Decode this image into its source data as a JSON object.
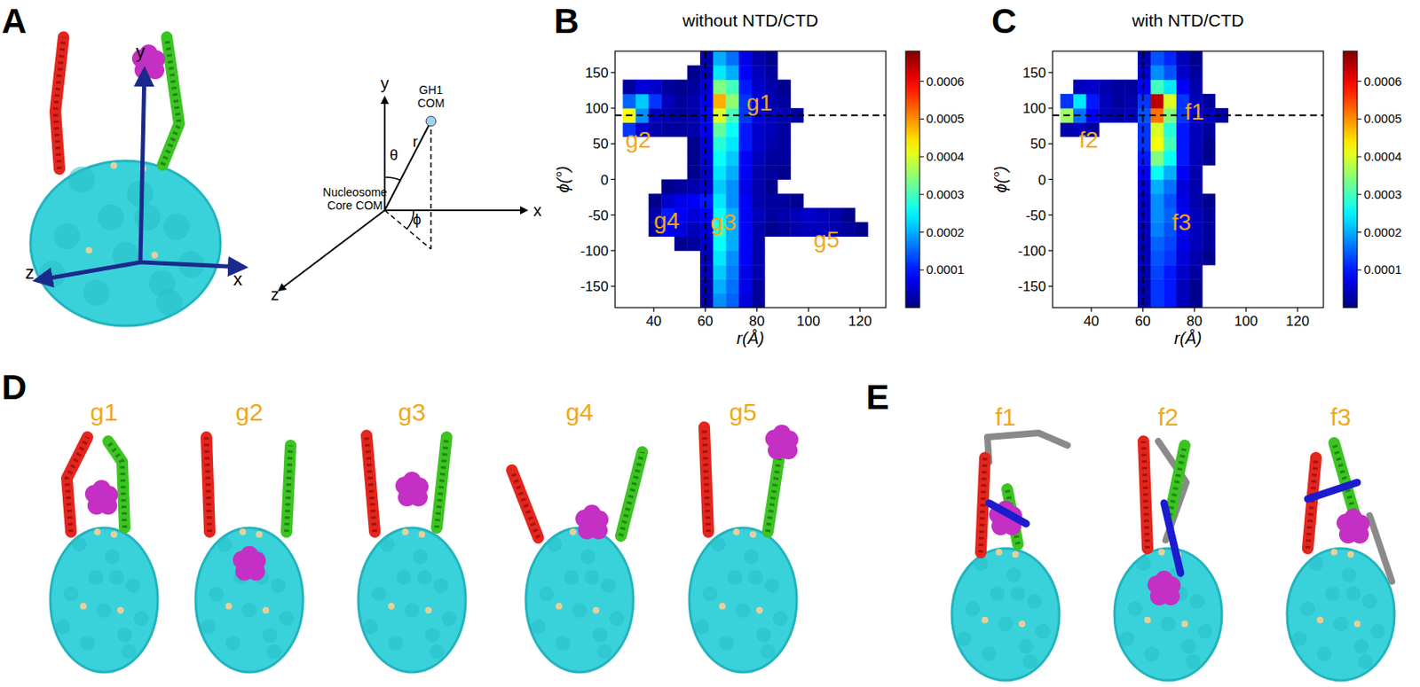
{
  "panel_a": {
    "letter": "A",
    "molecule_axes": [
      "y",
      "x",
      "z"
    ],
    "diagram": {
      "axes": [
        "y",
        "x",
        "z"
      ],
      "point_label": "GH1 COM",
      "origin_label": "Nucleosome Core COM",
      "theta": "θ",
      "r": "r",
      "phi": "ϕ"
    }
  },
  "chart_data": [
    {
      "type": "heatmap",
      "letter": "B",
      "title": "without NTD/CTD",
      "x_label": "r(Å)",
      "y_label": "ϕ(°)",
      "xlim": [
        25,
        130
      ],
      "ylim": [
        -180,
        180
      ],
      "xticks": [
        40,
        60,
        80,
        100,
        120
      ],
      "yticks": [
        -150,
        -100,
        -50,
        0,
        50,
        100,
        150
      ],
      "x_bins": [
        28,
        33,
        38,
        43,
        48,
        53,
        58,
        63,
        68,
        73,
        78,
        83,
        88,
        93,
        98,
        103,
        108,
        113,
        118,
        123,
        128
      ],
      "y_bins": [
        -180,
        -160,
        -140,
        -120,
        -100,
        -80,
        -60,
        -40,
        -20,
        0,
        20,
        40,
        60,
        80,
        100,
        120,
        140,
        160,
        180
      ],
      "cells": [
        [
          0,
          0,
          0,
          0,
          0,
          0,
          3e-05,
          0.00018,
          0.00015,
          6e-05,
          2e-05,
          0,
          0,
          0,
          0,
          0,
          0,
          0,
          0,
          0
        ],
        [
          0,
          0,
          0,
          0,
          0,
          0,
          3e-05,
          0.0002,
          0.00016,
          7e-05,
          2e-05,
          0,
          0,
          0,
          0,
          0,
          0,
          0,
          0,
          0
        ],
        [
          0,
          0,
          0,
          0,
          0,
          0,
          4e-05,
          0.00022,
          0.00017,
          7e-05,
          3e-05,
          0,
          0,
          0,
          0,
          0,
          0,
          0,
          0,
          0
        ],
        [
          0,
          0,
          0,
          0,
          0,
          0,
          4e-05,
          0.00024,
          0.00018,
          8e-05,
          3e-05,
          0,
          0,
          0,
          0,
          0,
          0,
          0,
          0,
          0
        ],
        [
          0,
          0,
          0,
          0,
          1e-05,
          2e-05,
          5e-05,
          0.00026,
          0.0002,
          8e-05,
          3e-05,
          0,
          0,
          0,
          0,
          0,
          0,
          0,
          0,
          0
        ],
        [
          0,
          0,
          2e-05,
          8e-05,
          6e-05,
          4e-05,
          6e-05,
          0.00028,
          0.0002,
          8e-05,
          3e-05,
          1e-05,
          2e-05,
          3e-05,
          4e-05,
          4e-05,
          3e-05,
          2e-05,
          1e-05,
          0
        ],
        [
          0,
          0,
          3e-05,
          0.0001,
          8e-05,
          6e-05,
          8e-05,
          0.00026,
          0.0002,
          8e-05,
          4e-05,
          2e-05,
          3e-05,
          4e-05,
          5e-05,
          4e-05,
          3e-05,
          1e-05,
          0,
          0
        ],
        [
          0,
          0,
          1e-05,
          5e-05,
          7e-05,
          8e-05,
          0.0001,
          0.00024,
          0.00018,
          8e-05,
          3e-05,
          2e-05,
          2e-05,
          1e-05,
          0,
          0,
          0,
          0,
          0,
          0
        ],
        [
          0,
          0,
          0,
          1e-05,
          2e-05,
          3e-05,
          5e-05,
          0.00022,
          0.00018,
          7e-05,
          3e-05,
          1e-05,
          0,
          0,
          0,
          0,
          0,
          0,
          0,
          0
        ],
        [
          0,
          0,
          0,
          0,
          0,
          1e-05,
          5e-05,
          0.00024,
          0.0002,
          8e-05,
          3e-05,
          2e-05,
          1e-05,
          0,
          0,
          0,
          0,
          0,
          0,
          0
        ],
        [
          0,
          0,
          0,
          0,
          0,
          1e-05,
          6e-05,
          0.00026,
          0.00022,
          8e-05,
          4e-05,
          2e-05,
          2e-05,
          0,
          0,
          0,
          0,
          0,
          0,
          0
        ],
        [
          0,
          0,
          0,
          0,
          0,
          1e-05,
          6e-05,
          0.00028,
          0.00024,
          0.0001,
          5e-05,
          3e-05,
          2e-05,
          0,
          0,
          0,
          0,
          0,
          0,
          0
        ],
        [
          0.00012,
          5e-05,
          3e-05,
          2e-05,
          2e-05,
          3e-05,
          8e-05,
          0.00032,
          0.00026,
          0.0001,
          5e-05,
          4e-05,
          2e-05,
          0,
          0,
          0,
          0,
          0,
          0,
          0
        ],
        [
          0.00042,
          0.00018,
          4e-05,
          3e-05,
          2e-05,
          3e-05,
          9e-05,
          0.0004,
          0.0003,
          0.00012,
          6e-05,
          4e-05,
          3e-05,
          2e-05,
          0,
          0,
          0,
          0,
          0,
          0
        ],
        [
          0.00015,
          0.00022,
          0.00012,
          4e-05,
          2e-05,
          3e-05,
          8e-05,
          0.00048,
          0.00035,
          0.00012,
          6e-05,
          3e-05,
          2e-05,
          0,
          0,
          0,
          0,
          0,
          0,
          0
        ],
        [
          2e-05,
          6e-05,
          5e-05,
          2e-05,
          1e-05,
          2e-05,
          6e-05,
          0.00034,
          0.0003,
          0.0001,
          5e-05,
          3e-05,
          1e-05,
          0,
          0,
          0,
          0,
          0,
          0,
          0
        ],
        [
          0,
          0,
          0,
          0,
          0,
          1e-05,
          4e-05,
          0.00024,
          0.0002,
          8e-05,
          4e-05,
          2e-05,
          0,
          0,
          0,
          0,
          0,
          0,
          0,
          0
        ],
        [
          0,
          0,
          0,
          0,
          0,
          0,
          3e-05,
          0.0002,
          0.00016,
          7e-05,
          3e-05,
          1e-05,
          0,
          0,
          0,
          0,
          0,
          0,
          0,
          0
        ]
      ],
      "colorbar_range": [
        0,
        0.00068
      ],
      "colorbar_ticks": [
        0.0001,
        0.0002,
        0.0003,
        0.0004,
        0.0005,
        0.0006
      ],
      "reference_lines": {
        "x": 60,
        "y": 90
      },
      "annotations": [
        {
          "text": "g1",
          "x": 81,
          "y": 108
        },
        {
          "text": "g2",
          "x": 34,
          "y": 56
        },
        {
          "text": "g3",
          "x": 67,
          "y": -60
        },
        {
          "text": "g4",
          "x": 45,
          "y": -57
        },
        {
          "text": "g5",
          "x": 107,
          "y": -84
        }
      ]
    },
    {
      "type": "heatmap",
      "letter": "C",
      "title": "with NTD/CTD",
      "x_label": "r(Å)",
      "y_label": "ϕ(°)",
      "xlim": [
        25,
        130
      ],
      "ylim": [
        -180,
        180
      ],
      "xticks": [
        40,
        60,
        80,
        100,
        120
      ],
      "yticks": [
        -150,
        -100,
        -50,
        0,
        50,
        100,
        150
      ],
      "x_bins": [
        28,
        33,
        38,
        43,
        48,
        53,
        58,
        63,
        68,
        73,
        78,
        83,
        88,
        93,
        98,
        103,
        108,
        113,
        118,
        123,
        128
      ],
      "y_bins": [
        -180,
        -160,
        -140,
        -120,
        -100,
        -80,
        -60,
        -40,
        -20,
        0,
        20,
        40,
        60,
        80,
        100,
        120,
        140,
        160,
        180
      ],
      "cells": [
        [
          0,
          0,
          0,
          0,
          0,
          0,
          3e-05,
          0.00012,
          0.0001,
          4e-05,
          1e-05,
          0,
          0,
          0,
          0,
          0,
          0,
          0,
          0,
          0
        ],
        [
          0,
          0,
          0,
          0,
          0,
          0,
          3e-05,
          0.00012,
          0.0001,
          4e-05,
          1e-05,
          0,
          0,
          0,
          0,
          0,
          0,
          0,
          0,
          0
        ],
        [
          0,
          0,
          0,
          0,
          0,
          0,
          3e-05,
          0.00013,
          0.0001,
          5e-05,
          2e-05,
          0,
          0,
          0,
          0,
          0,
          0,
          0,
          0,
          0
        ],
        [
          0,
          0,
          0,
          0,
          0,
          0,
          4e-05,
          0.00014,
          0.00012,
          6e-05,
          3e-05,
          1e-05,
          0,
          0,
          0,
          0,
          0,
          0,
          0,
          0
        ],
        [
          0,
          0,
          0,
          0,
          0,
          0,
          4e-05,
          0.00015,
          0.00013,
          7e-05,
          4e-05,
          2e-05,
          0,
          0,
          0,
          0,
          0,
          0,
          0,
          0
        ],
        [
          0,
          0,
          0,
          0,
          0,
          0,
          4e-05,
          0.00017,
          0.00014,
          8e-05,
          4e-05,
          2e-05,
          0,
          0,
          0,
          0,
          0,
          0,
          0,
          0
        ],
        [
          0,
          0,
          0,
          0,
          0,
          0,
          5e-05,
          0.00018,
          0.00015,
          8e-05,
          4e-05,
          2e-05,
          0,
          0,
          0,
          0,
          0,
          0,
          0,
          0
        ],
        [
          0,
          0,
          0,
          0,
          0,
          0,
          5e-05,
          0.00018,
          0.00014,
          7e-05,
          3e-05,
          1e-05,
          0,
          0,
          0,
          0,
          0,
          0,
          0,
          0
        ],
        [
          0,
          0,
          0,
          0,
          0,
          0,
          6e-05,
          0.0002,
          0.00016,
          6e-05,
          3e-05,
          0,
          0,
          0,
          0,
          0,
          0,
          0,
          0,
          0
        ],
        [
          0,
          0,
          0,
          0,
          0,
          0,
          8e-05,
          0.00026,
          0.0002,
          8e-05,
          3e-05,
          0,
          0,
          0,
          0,
          0,
          0,
          0,
          0,
          0
        ],
        [
          0,
          0,
          0,
          0,
          0,
          0,
          0.0001,
          0.00034,
          0.00026,
          0.0001,
          4e-05,
          1e-05,
          0,
          0,
          0,
          0,
          0,
          0,
          0,
          0
        ],
        [
          0,
          0,
          0,
          0,
          0,
          0,
          0.00012,
          0.00042,
          0.0003,
          0.0001,
          4e-05,
          1e-05,
          0,
          0,
          0,
          0,
          0,
          0,
          0,
          0
        ],
        [
          3e-05,
          4e-05,
          2e-05,
          0,
          0,
          0,
          0.00012,
          0.0004,
          0.00028,
          0.0001,
          4e-05,
          2e-05,
          0,
          0,
          0,
          0,
          0,
          0,
          0,
          0
        ],
        [
          0.00036,
          0.00016,
          8e-05,
          4e-05,
          3e-05,
          4e-05,
          0.00014,
          0.00052,
          0.00034,
          0.00012,
          6e-05,
          4e-05,
          2e-05,
          0,
          0,
          0,
          0,
          0,
          0,
          0
        ],
        [
          0.00012,
          0.00024,
          0.0001,
          4e-05,
          2e-05,
          3e-05,
          0.00012,
          0.00064,
          0.0004,
          0.00012,
          4e-05,
          2e-05,
          0,
          0,
          0,
          0,
          0,
          0,
          0,
          0
        ],
        [
          0,
          4e-05,
          5e-05,
          3e-05,
          2e-05,
          2e-05,
          8e-05,
          0.0003,
          0.00024,
          8e-05,
          3e-05,
          0,
          0,
          0,
          0,
          0,
          0,
          0,
          0,
          0
        ],
        [
          0,
          0,
          0,
          0,
          0,
          0,
          5e-05,
          0.00018,
          0.00014,
          5e-05,
          2e-05,
          0,
          0,
          0,
          0,
          0,
          0,
          0,
          0,
          0
        ],
        [
          0,
          0,
          0,
          0,
          0,
          0,
          3e-05,
          0.00014,
          0.00011,
          4e-05,
          1e-05,
          0,
          0,
          0,
          0,
          0,
          0,
          0,
          0,
          0
        ]
      ],
      "colorbar_range": [
        0,
        0.00068
      ],
      "colorbar_ticks": [
        0.0001,
        0.0002,
        0.0003,
        0.0004,
        0.0005,
        0.0006
      ],
      "reference_lines": {
        "x": 60,
        "y": 90
      },
      "annotations": [
        {
          "text": "f1",
          "x": 80,
          "y": 96
        },
        {
          "text": "f2",
          "x": 39,
          "y": 56
        },
        {
          "text": "f3",
          "x": 75,
          "y": -60
        }
      ]
    }
  ],
  "panel_d": {
    "letter": "D",
    "snapshots": [
      "g1",
      "g2",
      "g3",
      "g4",
      "g5"
    ]
  },
  "panel_e": {
    "letter": "E",
    "snapshots": [
      "f1",
      "f2",
      "f3"
    ]
  }
}
